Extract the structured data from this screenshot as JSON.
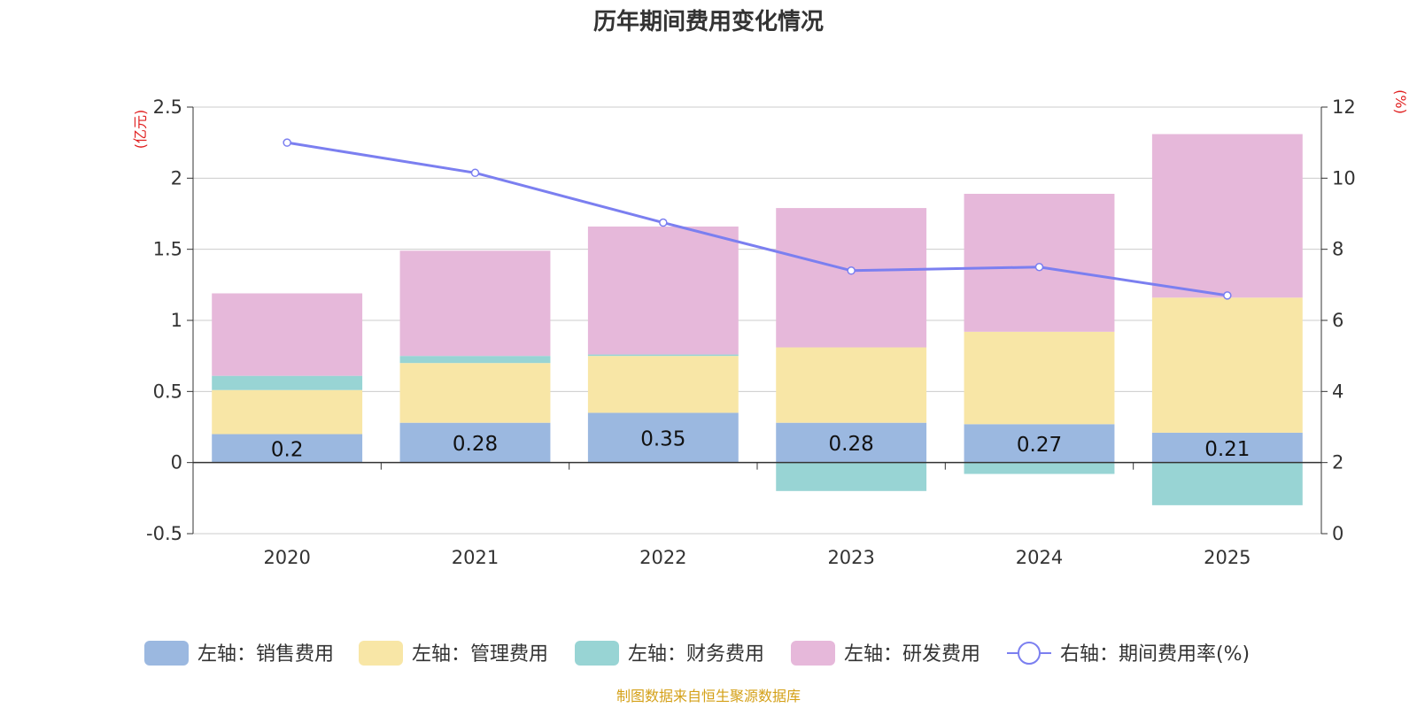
{
  "chart_data": {
    "type": "bar",
    "title": "历年期间费用变化情况",
    "left_unit": "(亿元)",
    "right_unit": "(%)",
    "categories": [
      "2020",
      "2021",
      "2022",
      "2023",
      "2024",
      "2025"
    ],
    "ylim": [
      -0.5,
      2.5
    ],
    "y_ticks": [
      "2.5",
      "2",
      "1.5",
      "1",
      "0.5",
      "0",
      "-0.5"
    ],
    "y2lim": [
      0,
      12
    ],
    "y2_ticks": [
      "12",
      "10",
      "8",
      "6",
      "4",
      "2",
      "0"
    ],
    "series": [
      {
        "name": "左轴：销售费用",
        "color": "#9bb8e0",
        "values": [
          0.2,
          0.28,
          0.35,
          0.28,
          0.27,
          0.21
        ]
      },
      {
        "name": "左轴：管理费用",
        "color": "#f8e6a6",
        "values": [
          0.31,
          0.42,
          0.4,
          0.53,
          0.65,
          0.95
        ]
      },
      {
        "name": "左轴：财务费用",
        "color": "#98d4d4",
        "values": [
          0.1,
          0.05,
          0.01,
          -0.2,
          -0.08,
          -0.3
        ]
      },
      {
        "name": "左轴：研发费用",
        "color": "#e6b8da",
        "values": [
          0.58,
          0.74,
          0.9,
          0.98,
          0.97,
          1.15
        ]
      }
    ],
    "line_series": {
      "name": "右轴：期间费用率(%)",
      "color": "#7b7ff0",
      "values": [
        11.0,
        10.15,
        8.75,
        7.4,
        7.5,
        6.7
      ]
    },
    "data_labels": [
      "0.2",
      "0.28",
      "0.35",
      "0.28",
      "0.27",
      "0.21"
    ],
    "source": "制图数据来自恒生聚源数据库",
    "colors": {
      "title": "#333333",
      "unit": "#e02020",
      "source": "#d4a017",
      "grid": "#cccccc",
      "axis": "#333333"
    }
  }
}
